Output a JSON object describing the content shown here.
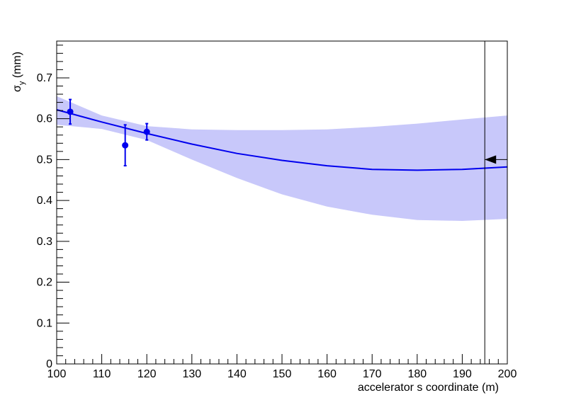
{
  "chart_data": {
    "type": "scatter",
    "xlabel": "accelerator s coordinate (m)",
    "ylabel": {
      "main": "σ",
      "sub": "y",
      "unit": " (mm)"
    },
    "xlim": [
      100,
      200
    ],
    "ylim": [
      0,
      0.79
    ],
    "x_ticks": [
      "100",
      "110",
      "120",
      "130",
      "140",
      "150",
      "160",
      "170",
      "180",
      "190",
      "200"
    ],
    "y_ticks": [
      "0",
      "0.1",
      "0.2",
      "0.3",
      "0.4",
      "0.5",
      "0.6",
      "0.7"
    ],
    "grid": false,
    "legend": "none",
    "points": [
      {
        "x": 103.0,
        "y": 0.617,
        "err": 0.03
      },
      {
        "x": 115.2,
        "y": 0.535,
        "err": 0.05
      },
      {
        "x": 120.0,
        "y": 0.568,
        "err": 0.02
      }
    ],
    "fit": {
      "x": [
        100,
        110,
        120,
        130,
        140,
        150,
        160,
        170,
        180,
        190,
        195,
        200
      ],
      "y": [
        0.622,
        0.592,
        0.564,
        0.538,
        0.515,
        0.498,
        0.485,
        0.476,
        0.474,
        0.476,
        0.479,
        0.482
      ]
    },
    "band": {
      "x": [
        100,
        110,
        120,
        130,
        140,
        150,
        160,
        170,
        180,
        190,
        200
      ],
      "upper": [
        0.655,
        0.608,
        0.582,
        0.574,
        0.572,
        0.572,
        0.574,
        0.58,
        0.588,
        0.598,
        0.608
      ],
      "lower": [
        0.585,
        0.575,
        0.548,
        0.5,
        0.455,
        0.415,
        0.385,
        0.365,
        0.352,
        0.35,
        0.355
      ]
    },
    "marker_line_x": 195,
    "arrow": {
      "x": 195,
      "y": 0.5
    },
    "colors": {
      "series": "#0000ee",
      "band": "#c8c8fa",
      "axes": "#000000"
    }
  }
}
